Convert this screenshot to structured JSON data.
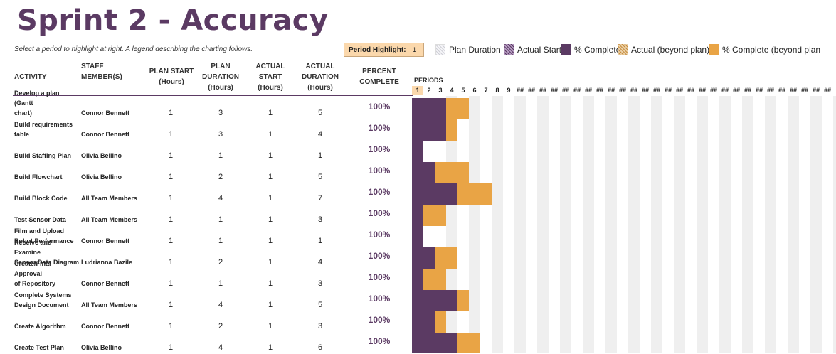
{
  "title": "Sprint 2 - Accuracy",
  "subtitle": "Select a period to highlight at right.  A legend describing the charting follows.",
  "period_highlight": {
    "label": "Period Highlight:",
    "value": "1"
  },
  "legend": [
    {
      "label": "Plan Duration",
      "icon": "plan-duration-swatch"
    },
    {
      "label": "Actual Start",
      "icon": "actual-start-swatch"
    },
    {
      "label": "% Complete",
      "icon": "percent-complete-swatch"
    },
    {
      "label": "Actual (beyond plan)",
      "icon": "actual-beyond-swatch"
    },
    {
      "label": "% Complete (beyond plan",
      "icon": "percent-beyond-swatch"
    }
  ],
  "headers": {
    "activity": "ACTIVITY",
    "staff_1": "STAFF",
    "staff_2": "MEMBER(S)",
    "plan_start_1": "PLAN START",
    "plan_start_2": "(Hours)",
    "plan_dur_1": "PLAN",
    "plan_dur_2": "DURATION",
    "plan_dur_3": "(Hours)",
    "actual_start_1": "ACTUAL",
    "actual_start_2": "START",
    "actual_start_3": "(Hours)",
    "actual_dur_1": "ACTUAL",
    "actual_dur_2": "DURATION",
    "actual_dur_3": "(Hours)",
    "percent_1": "PERCENT",
    "percent_2": "COMPLETE",
    "periods": "PERIODS"
  },
  "period_labels": [
    "1",
    "2",
    "3",
    "4",
    "5",
    "6",
    "7",
    "8",
    "9",
    "##",
    "##",
    "##",
    "##",
    "##",
    "##",
    "##",
    "##",
    "##",
    "##",
    "##",
    "##",
    "##",
    "##",
    "##",
    "##",
    "##",
    "##",
    "##",
    "##",
    "##",
    "##",
    "##",
    "##",
    "##",
    "##",
    "##",
    "##"
  ],
  "rows": [
    {
      "activity_1": "Develop a plan (Gantt",
      "activity_2": "chart)",
      "staff": "Connor Bennett",
      "plan_start": "1",
      "plan_dur": "3",
      "actual_start": "1",
      "actual_dur": "5",
      "percent": "100%",
      "plan_start_n": 1,
      "plan_dur_n": 3,
      "actual_start_n": 1,
      "actual_dur_n": 5
    },
    {
      "activity_1": "Build requirements",
      "activity_2": "table",
      "staff": "Connor Bennett",
      "plan_start": "1",
      "plan_dur": "3",
      "actual_start": "1",
      "actual_dur": "4",
      "percent": "100%",
      "plan_start_n": 1,
      "plan_dur_n": 3,
      "actual_start_n": 1,
      "actual_dur_n": 4
    },
    {
      "activity_1": "",
      "activity_2": "Build Staffing Plan",
      "staff": "Olivia Bellino",
      "plan_start": "1",
      "plan_dur": "1",
      "actual_start": "1",
      "actual_dur": "1",
      "percent": "100%",
      "plan_start_n": 1,
      "plan_dur_n": 1,
      "actual_start_n": 1,
      "actual_dur_n": 1
    },
    {
      "activity_1": "",
      "activity_2": "Build Flowchart",
      "staff": "Olivia Bellino",
      "plan_start": "1",
      "plan_dur": "2",
      "actual_start": "1",
      "actual_dur": "5",
      "percent": "100%",
      "plan_start_n": 1,
      "plan_dur_n": 2,
      "actual_start_n": 1,
      "actual_dur_n": 5
    },
    {
      "activity_1": "",
      "activity_2": "Build Block Code",
      "staff": "All Team Members",
      "plan_start": "1",
      "plan_dur": "4",
      "actual_start": "1",
      "actual_dur": "7",
      "percent": "100%",
      "plan_start_n": 1,
      "plan_dur_n": 4,
      "actual_start_n": 1,
      "actual_dur_n": 7
    },
    {
      "activity_1": "",
      "activity_2": "Test Sensor Data",
      "staff": "All Team Members",
      "plan_start": "1",
      "plan_dur": "1",
      "actual_start": "1",
      "actual_dur": "3",
      "percent": "100%",
      "plan_start_n": 1,
      "plan_dur_n": 1,
      "actual_start_n": 1,
      "actual_dur_n": 3
    },
    {
      "activity_1": "Film and Upload",
      "activity_2": "Robot Performance",
      "staff": "Connor Bennett",
      "plan_start": "1",
      "plan_dur": "1",
      "actual_start": "1",
      "actual_dur": "1",
      "percent": "100%",
      "plan_start_n": 1,
      "plan_dur_n": 1,
      "actual_start_n": 1,
      "actual_dur_n": 1
    },
    {
      "activity_1": "Receive and Examine",
      "activity_2": "Sensor Data Diagram",
      "staff": "Ludrianna Bazile",
      "plan_start": "1",
      "plan_dur": "2",
      "actual_start": "1",
      "actual_dur": "4",
      "percent": "100%",
      "plan_start_n": 1,
      "plan_dur_n": 2,
      "actual_start_n": 1,
      "actual_dur_n": 4
    },
    {
      "activity_1": "Create/Final Approval",
      "activity_2": "of Repository",
      "staff": "Connor Bennett",
      "plan_start": "1",
      "plan_dur": "1",
      "actual_start": "1",
      "actual_dur": "3",
      "percent": "100%",
      "plan_start_n": 1,
      "plan_dur_n": 1,
      "actual_start_n": 1,
      "actual_dur_n": 3
    },
    {
      "activity_1": "Complete Systems",
      "activity_2": "Design Document",
      "staff": "All Team Members",
      "plan_start": "1",
      "plan_dur": "4",
      "actual_start": "1",
      "actual_dur": "5",
      "percent": "100%",
      "plan_start_n": 1,
      "plan_dur_n": 4,
      "actual_start_n": 1,
      "actual_dur_n": 5
    },
    {
      "activity_1": "",
      "activity_2": "Create Algorithm",
      "staff": "Connor Bennett",
      "plan_start": "1",
      "plan_dur": "2",
      "actual_start": "1",
      "actual_dur": "3",
      "percent": "100%",
      "plan_start_n": 1,
      "plan_dur_n": 2,
      "actual_start_n": 1,
      "actual_dur_n": 3
    },
    {
      "activity_1": "",
      "activity_2": "Create Test Plan",
      "staff": "Olivia Bellino",
      "plan_start": "1",
      "plan_dur": "4",
      "actual_start": "1",
      "actual_dur": "6",
      "percent": "100%",
      "plan_start_n": 1,
      "plan_dur_n": 4,
      "actual_start_n": 1,
      "actual_dur_n": 6
    }
  ],
  "colors": {
    "title": "#5b3a63",
    "percent_complete": "#5b3a63",
    "percent_complete_beyond": "#e9a445",
    "highlight": "#fbd8ac"
  }
}
